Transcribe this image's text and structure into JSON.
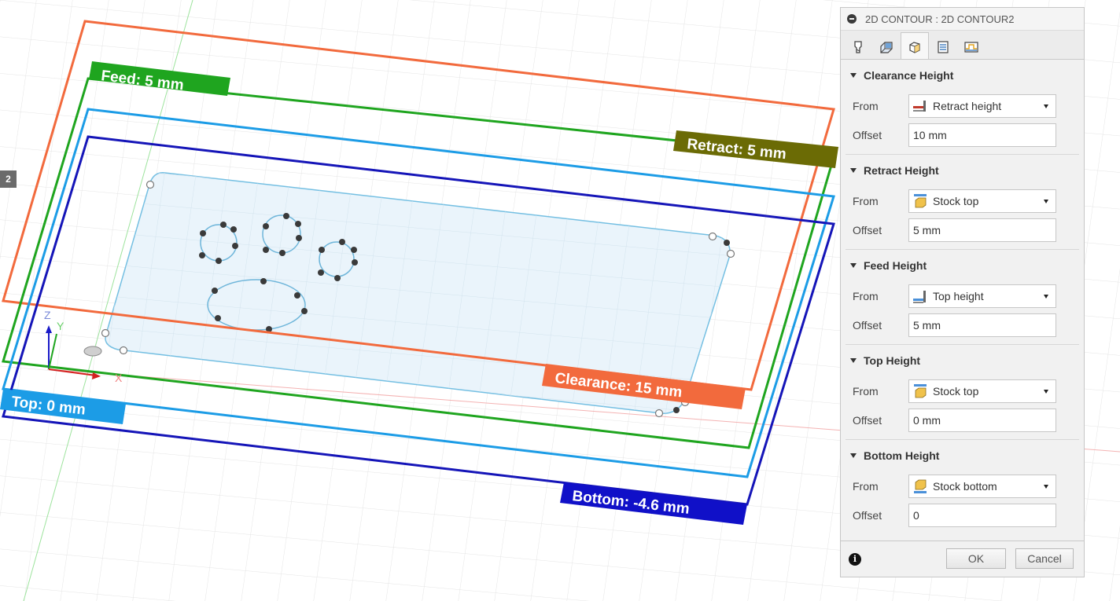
{
  "viewport": {
    "labels": {
      "feed": "Feed: 5 mm",
      "retract": "Retract: 5 mm",
      "clearance": "Clearance: 15 mm",
      "top": "Top: 0 mm",
      "bottom": "Bottom: -4.6 mm"
    },
    "axes": {
      "z": "Z",
      "y": "Y",
      "x": "X"
    },
    "side_tag": "2",
    "colors": {
      "clearance": "#f26a3d",
      "retract": "#6b6b05",
      "feed": "#1fa51f",
      "top": "#1c9ce6",
      "bottom": "#1515b8",
      "stock_fill": "#e8f3fb",
      "sketch_line": "#79bde0"
    }
  },
  "panel": {
    "title": "2D CONTOUR : 2D CONTOUR2",
    "tabs": [
      "tool-tab",
      "geometry-tab",
      "heights-tab",
      "passes-tab",
      "linking-tab"
    ],
    "active_tab": "heights-tab",
    "sections": {
      "clearance": {
        "title": "Clearance Height",
        "from_label": "From",
        "from_value": "Retract height",
        "offset_label": "Offset",
        "offset_value": "10 mm"
      },
      "retract": {
        "title": "Retract Height",
        "from_label": "From",
        "from_value": "Stock top",
        "offset_label": "Offset",
        "offset_value": "5 mm"
      },
      "feed": {
        "title": "Feed Height",
        "from_label": "From",
        "from_value": "Top height",
        "offset_label": "Offset",
        "offset_value": "5 mm"
      },
      "top": {
        "title": "Top Height",
        "from_label": "From",
        "from_value": "Stock top",
        "offset_label": "Offset",
        "offset_value": "0 mm"
      },
      "bottom": {
        "title": "Bottom Height",
        "from_label": "From",
        "from_value": "Stock bottom",
        "offset_label": "Offset",
        "offset_value": "0"
      }
    },
    "footer": {
      "ok": "OK",
      "cancel": "Cancel"
    }
  }
}
